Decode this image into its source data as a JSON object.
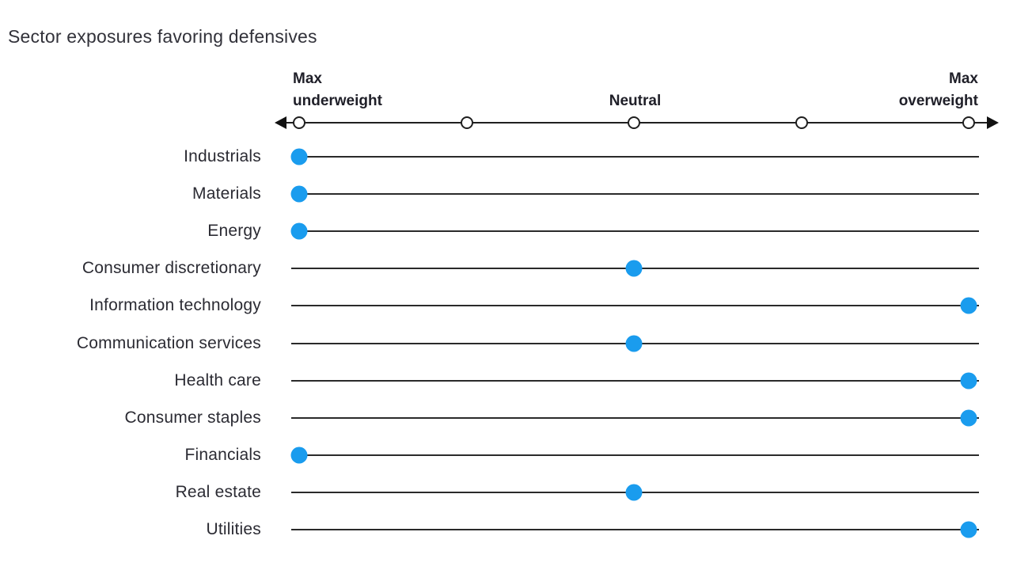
{
  "title": "Sector exposures favoring defensives",
  "colors": {
    "dot_blue": "#1A9CEE",
    "line_dark": "#2A2A2A",
    "text_dark": "#2B2B33"
  },
  "chart_data": {
    "type": "scatter",
    "subtype": "dot-plot-positioning",
    "title": "Sector exposures favoring defensives",
    "xlabel": "",
    "ylabel": "",
    "axis": {
      "left_label": "Max\nunderweight",
      "center_label": "Neutral",
      "right_label": "Max\noverweight",
      "range": [
        -2,
        2
      ],
      "tick_values": [
        -2,
        -1,
        0,
        1,
        2
      ],
      "grid": false,
      "legend_position": "none"
    },
    "sectors": [
      {
        "name": "Industrials",
        "position": -2,
        "position_label": "Max underweight"
      },
      {
        "name": "Materials",
        "position": -2,
        "position_label": "Max underweight"
      },
      {
        "name": "Energy",
        "position": -2,
        "position_label": "Max underweight"
      },
      {
        "name": "Consumer discretionary",
        "position": 0,
        "position_label": "Neutral"
      },
      {
        "name": "Information technology",
        "position": 2,
        "position_label": "Max overweight"
      },
      {
        "name": "Communication services",
        "position": 0,
        "position_label": "Neutral"
      },
      {
        "name": "Health care",
        "position": 2,
        "position_label": "Max overweight"
      },
      {
        "name": "Consumer staples",
        "position": 2,
        "position_label": "Max overweight"
      },
      {
        "name": "Financials",
        "position": -2,
        "position_label": "Max underweight"
      },
      {
        "name": "Real estate",
        "position": 0,
        "position_label": "Neutral"
      },
      {
        "name": "Utilities",
        "position": 2,
        "position_label": "Max overweight"
      }
    ]
  }
}
